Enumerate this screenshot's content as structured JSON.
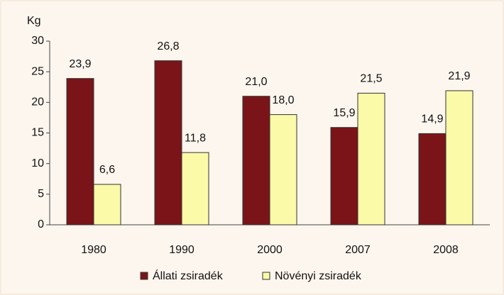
{
  "chart_data": {
    "type": "bar",
    "ylabel": "Kg",
    "categories": [
      "1980",
      "1990",
      "2000",
      "2007",
      "2008"
    ],
    "series": [
      {
        "name": "Állati zsiradék",
        "color": "#7b1418",
        "values": [
          23.9,
          26.8,
          21.0,
          15.9,
          14.9
        ],
        "value_labels": [
          "23,9",
          "26,8",
          "21,0",
          "15,9",
          "14,9"
        ]
      },
      {
        "name": "Növényi zsiradék",
        "color": "#fafaa8",
        "values": [
          6.6,
          11.8,
          18.0,
          21.5,
          21.9
        ],
        "value_labels": [
          "6,6",
          "11,8",
          "18,0",
          "21,5",
          "21,9"
        ]
      }
    ],
    "ylim": [
      0,
      30
    ],
    "yticks": [
      0,
      5,
      10,
      15,
      20,
      25,
      30
    ],
    "grid": false,
    "legend": "bottom"
  }
}
